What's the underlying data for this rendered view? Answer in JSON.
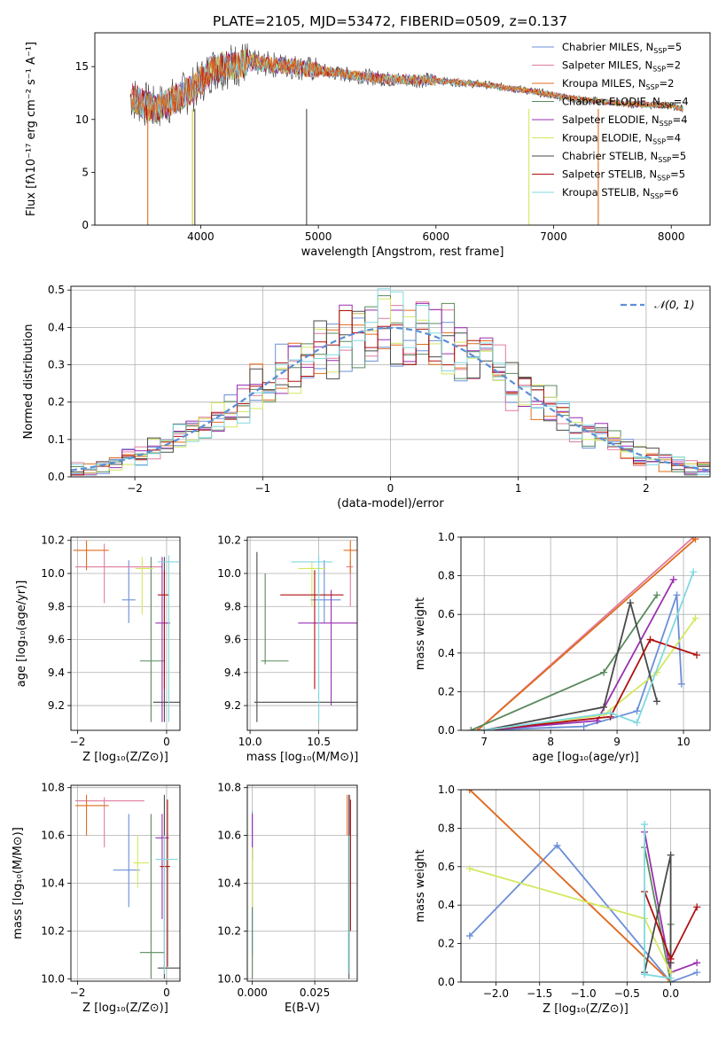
{
  "title": "PLATE=2105, MJD=53472, FIBERID=0509, z=0.137",
  "colors": [
    "#6b8fd8",
    "#e07ca0",
    "#e06c1c",
    "#5a8a5e",
    "#9a2fb0",
    "#d4e860",
    "#4a4a4a",
    "#b01010",
    "#80d8e0"
  ],
  "labels": {
    "spec_x": "wavelength [Angstrom, rest frame]",
    "spec_y": "Flux [fλ10⁻¹⁷ erg cm⁻² s⁻¹ A⁻¹]",
    "hist_x": "(data-model)/error",
    "hist_y": "Normed distribution",
    "hist_legend": "𝒩(0, 1)",
    "age_y": "age  [log₁₀(age/yr)]",
    "z_x": "Z [log₁₀(Z/Z⊙)]",
    "mass_x": "mass [log₁₀(M/M⊙)]",
    "mass_y": "mass [log₁₀(M/M⊙)]",
    "ebv_x": "E(B-V)",
    "massweight_y": "mass weight",
    "age_x": "age  [log₁₀(age/yr)]"
  },
  "chart_data": [
    {
      "type": "line",
      "title": "PLATE=2105, MJD=53472, FIBERID=0509, z=0.137",
      "xlabel": "wavelength [Angstrom, rest frame]",
      "ylabel": "Flux [fλ10⁻¹⁷ erg cm⁻² s⁻¹ A⁻¹]",
      "xlim": [
        3100,
        8330
      ],
      "ylim": [
        0,
        18.2
      ],
      "xticks": [
        4000,
        5000,
        6000,
        7000,
        8000
      ],
      "yticks": [
        0,
        5,
        10,
        15
      ],
      "legend": "top-right",
      "series": [
        {
          "name": "Chabrier MILES, N_SSP=5"
        },
        {
          "name": "Salpeter MILES, N_SSP=2"
        },
        {
          "name": "Kroupa MILES, N_SSP=2"
        },
        {
          "name": "Chabrier ELODIE, N_SSP=4"
        },
        {
          "name": "Salpeter ELODIE, N_SSP=4"
        },
        {
          "name": "Kroupa ELODIE, N_SSP=4"
        },
        {
          "name": "Chabrier STELIB, N_SSP=5"
        },
        {
          "name": "Salpeter STELIB, N_SSP=5"
        },
        {
          "name": "Kroupa STELIB, N_SSP=6"
        }
      ],
      "continuum": [
        [
          3400,
          12.2
        ],
        [
          3600,
          11.0
        ],
        [
          3800,
          12.0
        ],
        [
          3950,
          13.0
        ],
        [
          4100,
          14.8
        ],
        [
          4400,
          15.4
        ],
        [
          4800,
          15.0
        ],
        [
          5200,
          14.3
        ],
        [
          5600,
          13.8
        ],
        [
          6000,
          13.7
        ],
        [
          6400,
          13.3
        ],
        [
          6800,
          12.7
        ],
        [
          7200,
          11.9
        ],
        [
          7600,
          11.5
        ],
        [
          8000,
          11.3
        ],
        [
          8100,
          11.0
        ]
      ]
    },
    {
      "type": "bar",
      "xlabel": "(data-model)/error",
      "ylabel": "Normed distribution",
      "xlim": [
        -2.5,
        2.5
      ],
      "ylim": [
        0,
        0.51
      ],
      "xticks": [
        -2,
        -1,
        0,
        1,
        2
      ],
      "yticks": [
        0.0,
        0.1,
        0.2,
        0.3,
        0.4,
        0.5
      ],
      "legend": "top-right",
      "reference": {
        "name": "𝒩(0, 1)",
        "mean": 0,
        "sigma": 1
      },
      "bin_width": 0.1
    },
    {
      "type": "scatter",
      "xlabel": "Z [log₁₀(Z/Z⊙)]",
      "ylabel": "age  [log₁₀(age/yr)]",
      "xlim": [
        -2.15,
        0.3
      ],
      "ylim": [
        9.05,
        10.22
      ],
      "xticks": [
        -2,
        0
      ],
      "yticks": [
        9.2,
        9.4,
        9.6,
        9.8,
        10.0,
        10.2
      ],
      "points": [
        {
          "x": -0.85,
          "y": 9.84,
          "ex": [
            -1.0,
            -0.7
          ],
          "ey": [
            9.7,
            10.08
          ]
        },
        {
          "x": -1.4,
          "y": 10.04,
          "ex": [
            -2.05,
            -0.1
          ],
          "ey": [
            9.82,
            10.18
          ]
        },
        {
          "x": -1.8,
          "y": 10.14,
          "ex": [
            -2.1,
            -1.3
          ],
          "ey": [
            10.02,
            10.2
          ]
        },
        {
          "x": -0.35,
          "y": 9.47,
          "ex": [
            -0.6,
            -0.05
          ],
          "ey": [
            9.1,
            10.1
          ]
        },
        {
          "x": -0.1,
          "y": 9.7,
          "ex": [
            -0.25,
            0.08
          ],
          "ey": [
            9.1,
            10.1
          ]
        },
        {
          "x": -0.55,
          "y": 10.03,
          "ex": [
            -0.7,
            -0.3
          ],
          "ey": [
            9.75,
            10.1
          ]
        },
        {
          "x": -0.05,
          "y": 9.22,
          "ex": [
            -0.3,
            0.3
          ],
          "ey": [
            9.1,
            10.1
          ]
        },
        {
          "x": -0.05,
          "y": 9.87,
          "ex": [
            -0.2,
            0.05
          ],
          "ey": [
            9.3,
            10.02
          ]
        },
        {
          "x": 0.05,
          "y": 10.07,
          "ex": [
            -0.2,
            0.28
          ],
          "ey": [
            9.1,
            10.11
          ]
        }
      ]
    },
    {
      "type": "scatter",
      "xlabel": "mass [log₁₀(M/M⊙)]",
      "ylabel": "",
      "xlim": [
        9.98,
        10.78
      ],
      "ylim": [
        9.05,
        10.22
      ],
      "xticks": [
        10.0,
        10.5
      ],
      "yticks": [
        9.2,
        9.4,
        9.6,
        9.8,
        10.0,
        10.2
      ],
      "points": [
        {
          "x": 10.54,
          "y": 9.84,
          "ex": [
            10.44,
            10.66
          ],
          "ey": [
            9.7,
            10.08
          ]
        },
        {
          "x": 10.73,
          "y": 10.04,
          "ex": [
            10.7,
            10.75
          ],
          "ey": [
            9.8,
            10.08
          ]
        },
        {
          "x": 10.73,
          "y": 10.14,
          "ex": [
            10.68,
            10.78
          ],
          "ey": [
            10.0,
            10.2
          ]
        },
        {
          "x": 10.11,
          "y": 9.47,
          "ex": [
            10.08,
            10.28
          ],
          "ey": [
            9.45,
            10.0
          ]
        },
        {
          "x": 10.59,
          "y": 9.7,
          "ex": [
            10.35,
            10.78
          ],
          "ey": [
            9.2,
            9.9
          ]
        },
        {
          "x": 10.45,
          "y": 10.03,
          "ex": [
            10.35,
            10.55
          ],
          "ey": [
            9.8,
            10.07
          ]
        },
        {
          "x": 10.05,
          "y": 9.22,
          "ex": [
            10.03,
            10.78
          ],
          "ey": [
            9.1,
            10.13
          ]
        },
        {
          "x": 10.47,
          "y": 9.87,
          "ex": [
            10.22,
            10.68
          ],
          "ey": [
            9.3,
            10.02
          ]
        },
        {
          "x": 10.5,
          "y": 10.07,
          "ex": [
            10.3,
            10.6
          ],
          "ey": [
            9.1,
            10.11
          ]
        }
      ]
    },
    {
      "type": "line",
      "xlabel": "age  [log₁₀(age/yr)]",
      "ylabel": "mass weight",
      "xlim": [
        6.65,
        10.4
      ],
      "ylim": [
        0,
        1.0
      ],
      "xticks": [
        7,
        8,
        9,
        10
      ],
      "yticks": [
        0.0,
        0.2,
        0.4,
        0.6,
        0.8,
        1.0
      ],
      "series": [
        {
          "x": [
            6.9,
            8.5,
            9.3,
            9.9,
            9.97
          ],
          "y": [
            0.0,
            0.02,
            0.1,
            0.7,
            0.24
          ]
        },
        {
          "x": [
            6.9,
            10.15
          ],
          "y": [
            0.0,
            1.0
          ]
        },
        {
          "x": [
            6.9,
            10.18
          ],
          "y": [
            0.0,
            0.99
          ]
        },
        {
          "x": [
            6.8,
            8.8,
            9.6
          ],
          "y": [
            0.0,
            0.3,
            0.7
          ]
        },
        {
          "x": [
            7.0,
            8.7,
            9.85
          ],
          "y": [
            0.0,
            0.05,
            0.78
          ]
        },
        {
          "x": [
            7.0,
            8.8,
            9.6,
            10.18
          ],
          "y": [
            0.0,
            0.08,
            0.3,
            0.58
          ]
        },
        {
          "x": [
            7.0,
            8.8,
            9.2,
            9.6
          ],
          "y": [
            0.0,
            0.12,
            0.66,
            0.15
          ]
        },
        {
          "x": [
            7.0,
            8.9,
            9.5,
            10.2
          ],
          "y": [
            0.0,
            0.07,
            0.47,
            0.39
          ]
        },
        {
          "x": [
            7.0,
            8.9,
            9.3,
            10.15
          ],
          "y": [
            0.0,
            0.09,
            0.04,
            0.82
          ]
        }
      ]
    },
    {
      "type": "scatter",
      "xlabel": "Z [log₁₀(Z/Z⊙)]",
      "ylabel": "mass [log₁₀(M/M⊙)]",
      "xlim": [
        -2.15,
        0.3
      ],
      "ylim": [
        9.99,
        10.81
      ],
      "xticks": [
        -2,
        0
      ],
      "yticks": [
        10.0,
        10.2,
        10.4,
        10.6,
        10.8
      ],
      "points": [
        {
          "x": -0.85,
          "y": 10.455,
          "ex": [
            -1.2,
            -0.6
          ],
          "ey": [
            10.3,
            10.69
          ]
        },
        {
          "x": -1.4,
          "y": 10.745,
          "ex": [
            -2.05,
            -0.5
          ],
          "ey": [
            10.55,
            10.76
          ]
        },
        {
          "x": -1.8,
          "y": 10.725,
          "ex": [
            -2.05,
            -1.3
          ],
          "ey": [
            10.6,
            10.77
          ]
        },
        {
          "x": -0.35,
          "y": 10.11,
          "ex": [
            -0.6,
            -0.05
          ],
          "ey": [
            10.0,
            10.69
          ]
        },
        {
          "x": -0.1,
          "y": 10.59,
          "ex": [
            -0.25,
            0.05
          ],
          "ey": [
            10.25,
            10.69
          ]
        },
        {
          "x": -0.65,
          "y": 10.485,
          "ex": [
            -0.75,
            -0.4
          ],
          "ey": [
            10.38,
            10.6
          ]
        },
        {
          "x": -0.05,
          "y": 10.045,
          "ex": [
            -0.2,
            0.3
          ],
          "ey": [
            10.0,
            10.77
          ]
        },
        {
          "x": 0.02,
          "y": 10.47,
          "ex": [
            -0.15,
            0.08
          ],
          "ey": [
            10.05,
            10.75
          ]
        },
        {
          "x": -0.05,
          "y": 10.5,
          "ex": [
            -0.25,
            0.25
          ],
          "ey": [
            10.02,
            10.6
          ]
        }
      ]
    },
    {
      "type": "scatter",
      "xlabel": "E(B-V)",
      "ylabel": "",
      "xlim": [
        -0.002,
        0.042
      ],
      "ylim": [
        9.99,
        10.81
      ],
      "xticks": [
        0.0,
        0.025
      ],
      "yticks": [
        10.0,
        10.2,
        10.4,
        10.6,
        10.8
      ],
      "points": [
        {
          "x": 0.0,
          "y": 10.45,
          "ex": [
            0.0,
            0.0
          ],
          "ey": [
            10.1,
            10.7
          ]
        },
        {
          "x": 0.039,
          "y": 10.72,
          "ex": [
            0.0,
            0.0
          ],
          "ey": [
            10.6,
            10.77
          ]
        },
        {
          "x": 0.038,
          "y": 10.7,
          "ex": [
            0.0,
            0.0
          ],
          "ey": [
            10.6,
            10.77
          ]
        },
        {
          "x": 0.0,
          "y": 10.1,
          "ex": [
            0.0,
            0.0
          ],
          "ey": [
            10.0,
            10.3
          ]
        },
        {
          "x": 0.0,
          "y": 10.58,
          "ex": [
            0.0,
            0.0
          ],
          "ey": [
            10.5,
            10.69
          ]
        },
        {
          "x": 0.0,
          "y": 10.45,
          "ex": [
            0.0,
            0.0
          ],
          "ey": [
            10.3,
            10.55
          ]
        },
        {
          "x": 0.0387,
          "y": 10.04,
          "ex": [
            0.0,
            0.0
          ],
          "ey": [
            10.0,
            10.77
          ]
        },
        {
          "x": 0.0393,
          "y": 10.47,
          "ex": [
            0.0,
            0.0
          ],
          "ey": [
            10.2,
            10.75
          ]
        },
        {
          "x": 0.0385,
          "y": 10.5,
          "ex": [
            0.0,
            0.0
          ],
          "ey": [
            10.02,
            10.6
          ]
        }
      ]
    },
    {
      "type": "line",
      "xlabel": "Z [log₁₀(Z/Z⊙)]",
      "ylabel": "mass weight",
      "xlim": [
        -2.4,
        0.45
      ],
      "ylim": [
        0,
        1.0
      ],
      "xticks": [
        -2.0,
        -1.5,
        -1.0,
        -0.5,
        0.0
      ],
      "yticks": [
        0.0,
        0.2,
        0.4,
        0.6,
        0.8,
        1.0
      ],
      "series": [
        {
          "x": [
            -2.3,
            -1.3,
            0.0,
            0.3
          ],
          "y": [
            0.24,
            0.71,
            0.0,
            0.05
          ]
        },
        {
          "x": [
            -2.3,
            0.0
          ],
          "y": [
            1.0,
            0.0
          ]
        },
        {
          "x": [
            -2.3,
            0.0
          ],
          "y": [
            1.0,
            0.0
          ]
        },
        {
          "x": [
            -0.3,
            0.0,
            0.0
          ],
          "y": [
            0.7,
            0.0,
            0.3
          ]
        },
        {
          "x": [
            -0.3,
            0.0,
            0.3
          ],
          "y": [
            0.78,
            0.05,
            0.1
          ]
        },
        {
          "x": [
            -2.3,
            -0.3,
            0.0
          ],
          "y": [
            0.59,
            0.33,
            0.05
          ]
        },
        {
          "x": [
            -0.3,
            0.0,
            0.0
          ],
          "y": [
            0.05,
            0.66,
            0.1
          ]
        },
        {
          "x": [
            -0.3,
            0.0,
            0.3
          ],
          "y": [
            0.47,
            0.12,
            0.39
          ]
        },
        {
          "x": [
            -0.3,
            -0.3,
            0.0
          ],
          "y": [
            0.82,
            0.04,
            0.02
          ]
        }
      ]
    }
  ]
}
